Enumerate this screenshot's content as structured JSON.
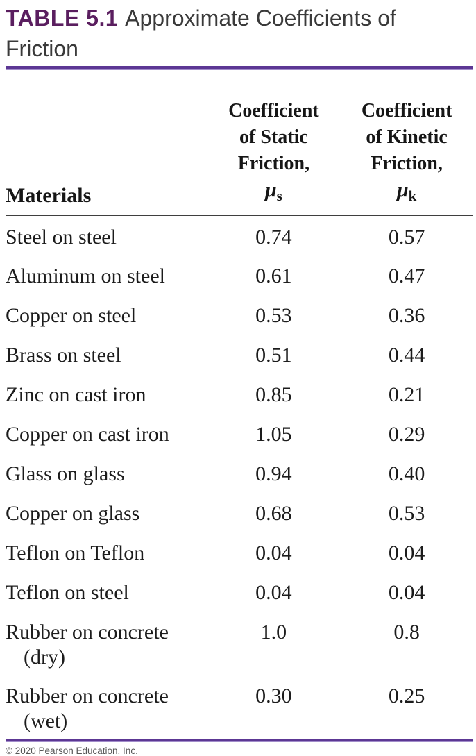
{
  "title": {
    "label": "TABLE 5.1",
    "caption": "Approximate Coefficients of Friction"
  },
  "table": {
    "headers": {
      "materials": "Materials",
      "static": {
        "lines": [
          "Coefficient",
          "of Static",
          "Friction,"
        ],
        "symbol": "μ",
        "subscript": "s"
      },
      "kinetic": {
        "lines": [
          "Coefficient",
          "of Kinetic",
          "Friction,"
        ],
        "symbol": "μ",
        "subscript": "k"
      }
    },
    "rows": [
      {
        "material": "Steel on steel",
        "static": "0.74",
        "kinetic": "0.57"
      },
      {
        "material": "Aluminum on steel",
        "static": "0.61",
        "kinetic": "0.47"
      },
      {
        "material": "Copper on steel",
        "static": "0.53",
        "kinetic": "0.36"
      },
      {
        "material": "Brass on steel",
        "static": "0.51",
        "kinetic": "0.44"
      },
      {
        "material": "Zinc on cast iron",
        "static": "0.85",
        "kinetic": "0.21"
      },
      {
        "material": "Copper on cast iron",
        "static": "1.05",
        "kinetic": "0.29"
      },
      {
        "material": "Glass on glass",
        "static": "0.94",
        "kinetic": "0.40"
      },
      {
        "material": "Copper on glass",
        "static": "0.68",
        "kinetic": "0.53"
      },
      {
        "material": "Teflon on Teflon",
        "static": "0.04",
        "kinetic": "0.04"
      },
      {
        "material": "Teflon on steel",
        "static": "0.04",
        "kinetic": "0.04"
      },
      {
        "material": "Rubber on concrete",
        "material_line2": "(dry)",
        "static": "1.0",
        "kinetic": "0.8"
      },
      {
        "material": "Rubber on concrete",
        "material_line2": "(wet)",
        "static": "0.30",
        "kinetic": "0.25"
      }
    ]
  },
  "footer": {
    "copyright": "© 2020 Pearson Education, Inc."
  },
  "colors": {
    "title_purple": "#5a1e5f",
    "rule_purple": "#5c3794",
    "rule_purple_light": "#a18cc9",
    "header_rule": "#3f3f3f",
    "body_text": "#1c1c1c",
    "title_gray": "#3a3a3a",
    "footer_gray": "#575757"
  }
}
